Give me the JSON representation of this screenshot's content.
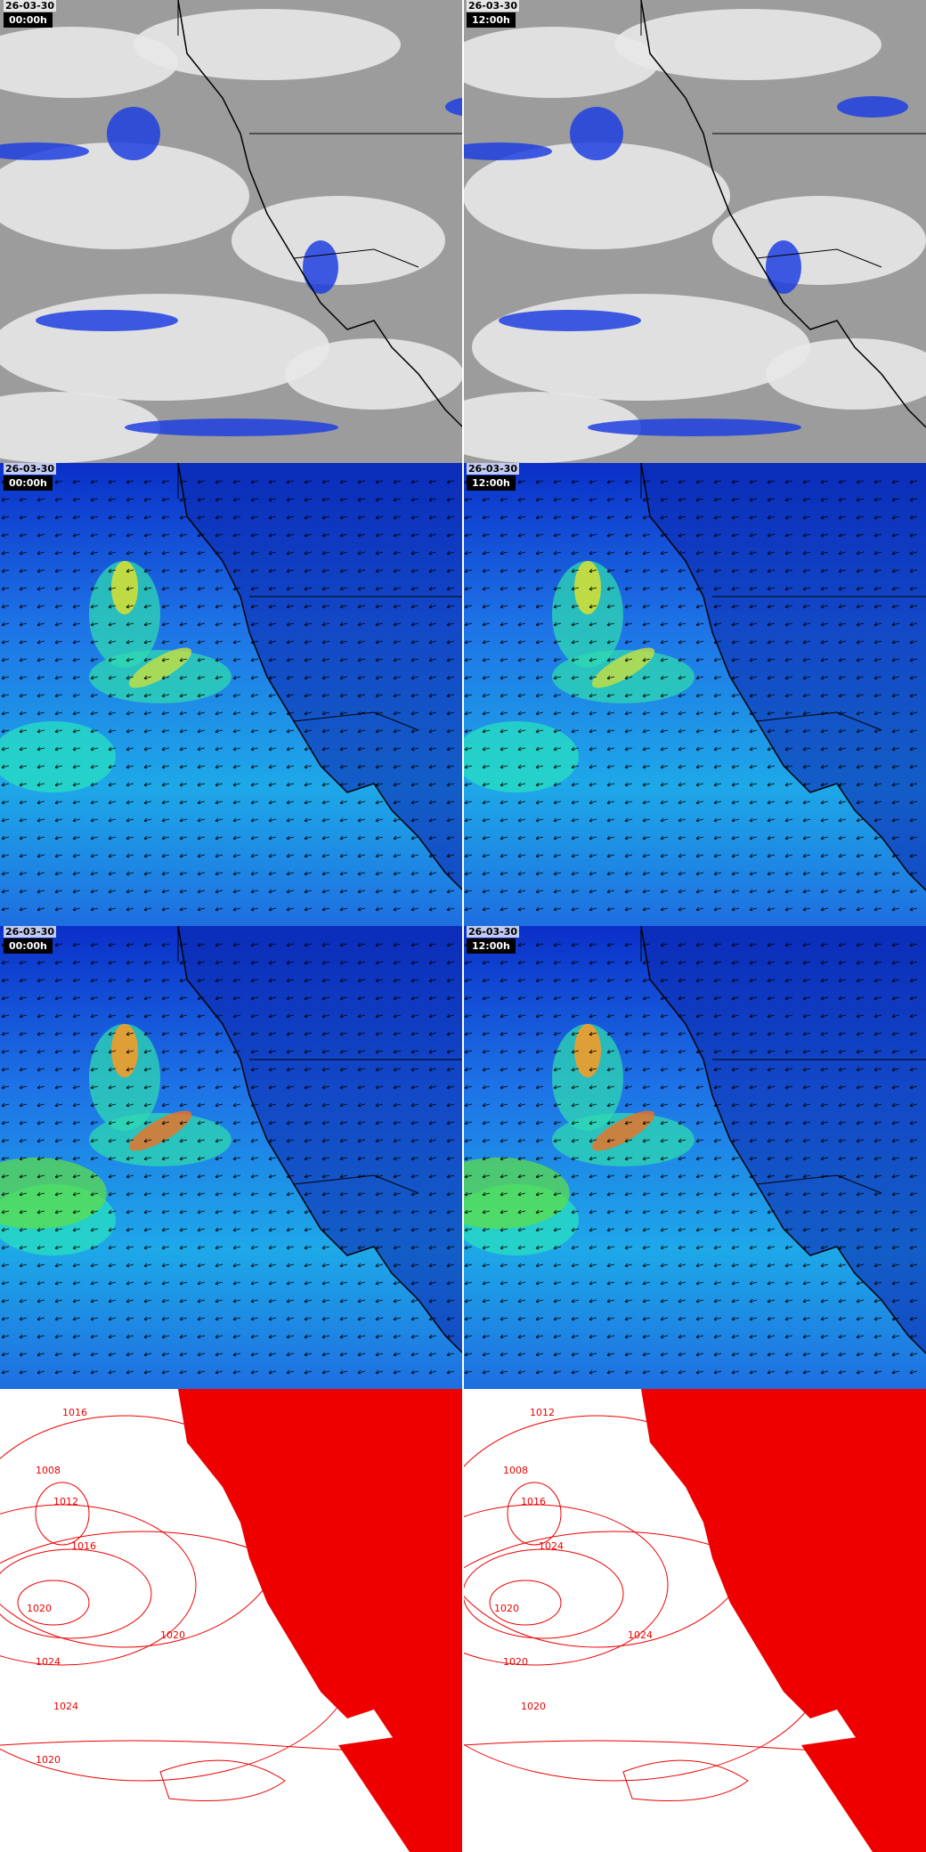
{
  "panels": [
    {
      "date": "26-03-30",
      "time": "00:00h"
    },
    {
      "date": "26-03-30",
      "time": "12:00h"
    },
    {
      "date": "26-03-30",
      "time": "00:00h"
    },
    {
      "date": "26-03-30",
      "time": "12:00h"
    },
    {
      "date": "26-03-30",
      "time": "00:00h"
    },
    {
      "date": "26-03-30",
      "time": "12:00h"
    }
  ],
  "pressure_panels": [
    {
      "isobar_labels": [
        "1016",
        "1008",
        "1012",
        "1016",
        "1020",
        "1024",
        "1020",
        "1024",
        "1020"
      ]
    },
    {
      "isobar_labels": [
        "1012",
        "1008",
        "1016",
        "1024",
        "1020",
        "1020",
        "1024",
        "1020"
      ]
    }
  ]
}
